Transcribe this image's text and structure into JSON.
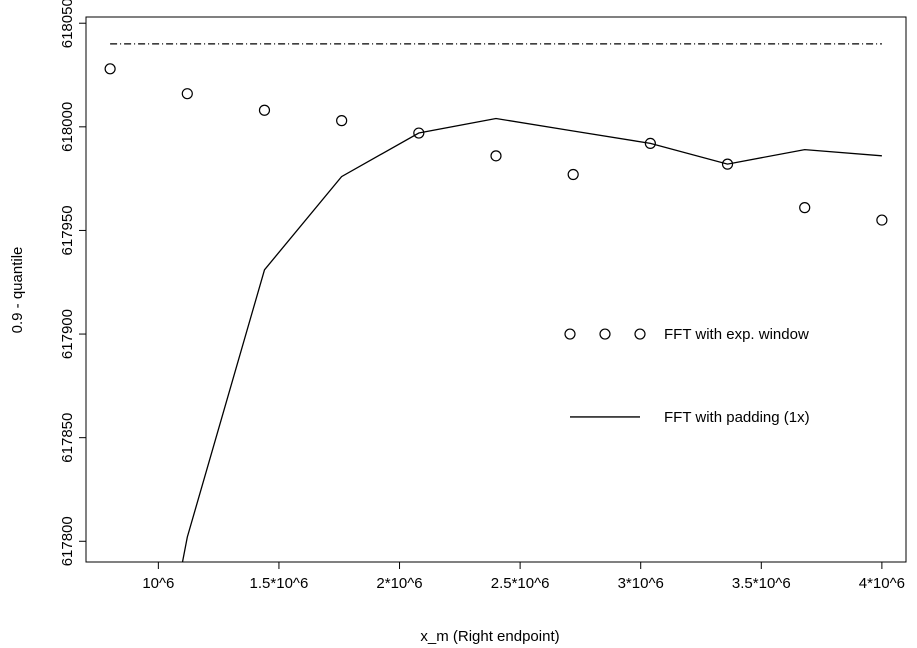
{
  "chart_data": {
    "type": "line",
    "xlabel": "x_m (Right endpoint)",
    "ylabel": "0.9 - quantile",
    "xlim": [
      700000,
      4100000
    ],
    "ylim": [
      617790,
      618053
    ],
    "x_ticks": [
      {
        "value": 1000000,
        "label": "10^6"
      },
      {
        "value": 1500000,
        "label": "1.5*10^6"
      },
      {
        "value": 2000000,
        "label": "2*10^6"
      },
      {
        "value": 2500000,
        "label": "2.5*10^6"
      },
      {
        "value": 3000000,
        "label": "3*10^6"
      },
      {
        "value": 3500000,
        "label": "3.5*10^6"
      },
      {
        "value": 4000000,
        "label": "4*10^6"
      }
    ],
    "y_ticks": [
      {
        "value": 617800,
        "label": "617800"
      },
      {
        "value": 617850,
        "label": "617850"
      },
      {
        "value": 617900,
        "label": "617900"
      },
      {
        "value": 617950,
        "label": "617950"
      },
      {
        "value": 618000,
        "label": "618000"
      },
      {
        "value": 618050,
        "label": "618050"
      }
    ],
    "grid": false,
    "legend_position": "right",
    "series": [
      {
        "name": "FFT with exp. window",
        "style": "points",
        "x": [
          800000,
          1120000,
          1440000,
          1760000,
          2080000,
          2400000,
          2720000,
          3040000,
          3360000,
          3680000,
          4000000
        ],
        "y": [
          618028,
          618016,
          618008,
          618003,
          617997,
          617986,
          617977,
          617992,
          617982,
          617961,
          617955
        ]
      },
      {
        "name": "FFT with padding (1x)",
        "style": "solid-line",
        "x": [
          1100000,
          1120000,
          1440000,
          1760000,
          2080000,
          2400000,
          2720000,
          3040000,
          3360000,
          3680000,
          4000000
        ],
        "y": [
          617790,
          617802,
          617931,
          617976,
          617997,
          618004,
          617998,
          617992,
          617982,
          617989,
          617986
        ]
      },
      {
        "style": "dash-dot-line",
        "x": [
          800000,
          4000000
        ],
        "y": [
          618040,
          618040
        ]
      }
    ],
    "legend": [
      {
        "label": "FFT with exp. window",
        "symbol": "points"
      },
      {
        "label": "FFT with padding (1x)",
        "symbol": "solid-line"
      }
    ]
  }
}
